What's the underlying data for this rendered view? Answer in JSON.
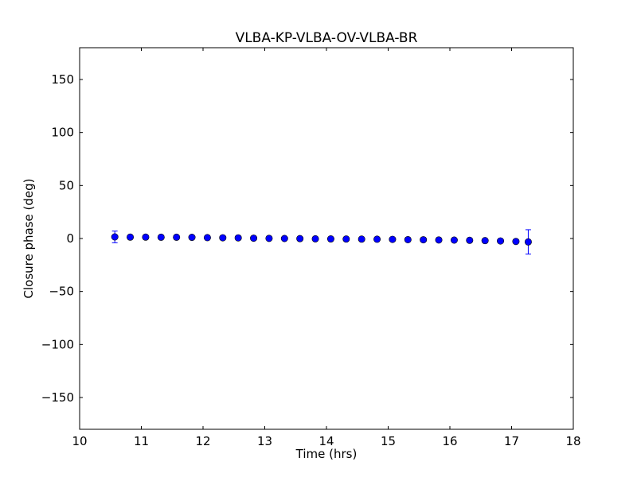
{
  "chart_data": {
    "type": "scatter",
    "title": "VLBA-KP-VLBA-OV-VLBA-BR",
    "xlabel": "Time (hrs)",
    "ylabel": "Closure phase (deg)",
    "xlim": [
      10,
      18
    ],
    "ylim": [
      -180,
      180
    ],
    "xticks": [
      10,
      11,
      12,
      13,
      14,
      15,
      16,
      17,
      18
    ],
    "yticks": [
      -150,
      -100,
      -50,
      0,
      50,
      100,
      150
    ],
    "xtick_labels": [
      "10",
      "11",
      "12",
      "13",
      "14",
      "15",
      "16",
      "17",
      "18"
    ],
    "ytick_labels": [
      "−150",
      "−100",
      "−50",
      "0",
      "50",
      "100",
      "150"
    ],
    "grid": false,
    "marker_color": "#0000ff",
    "errorbar_color": "#0000ff",
    "series": [
      {
        "points": [
          {
            "x": 10.57,
            "y": 1.5,
            "err": 5.5
          },
          {
            "x": 10.82,
            "y": 1.3
          },
          {
            "x": 11.07,
            "y": 1.3
          },
          {
            "x": 11.32,
            "y": 1.2
          },
          {
            "x": 11.57,
            "y": 1.2
          },
          {
            "x": 11.82,
            "y": 1.1
          },
          {
            "x": 12.07,
            "y": 0.8
          },
          {
            "x": 12.32,
            "y": 0.7
          },
          {
            "x": 12.57,
            "y": 0.6
          },
          {
            "x": 12.82,
            "y": 0.3
          },
          {
            "x": 13.07,
            "y": 0.1
          },
          {
            "x": 13.32,
            "y": 0.0
          },
          {
            "x": 13.57,
            "y": -0.1
          },
          {
            "x": 13.82,
            "y": -0.3
          },
          {
            "x": 14.07,
            "y": -0.4
          },
          {
            "x": 14.32,
            "y": -0.5
          },
          {
            "x": 14.57,
            "y": -0.6
          },
          {
            "x": 14.82,
            "y": -0.7
          },
          {
            "x": 15.07,
            "y": -0.8
          },
          {
            "x": 15.32,
            "y": -1.1
          },
          {
            "x": 15.57,
            "y": -1.2
          },
          {
            "x": 15.82,
            "y": -1.4
          },
          {
            "x": 16.07,
            "y": -1.5
          },
          {
            "x": 16.32,
            "y": -1.7
          },
          {
            "x": 16.57,
            "y": -2.0
          },
          {
            "x": 16.82,
            "y": -2.3
          },
          {
            "x": 17.07,
            "y": -2.8
          },
          {
            "x": 17.27,
            "y": -3.2,
            "err": 11.5
          }
        ]
      }
    ]
  }
}
